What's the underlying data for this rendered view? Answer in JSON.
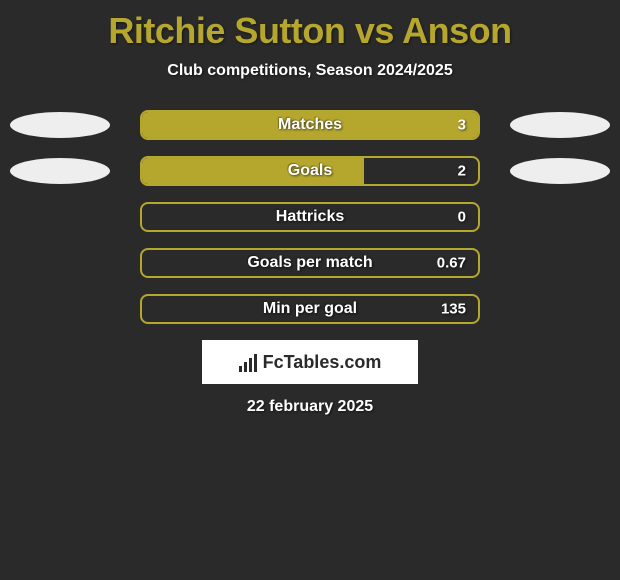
{
  "title": "Ritchie Sutton vs Anson",
  "subtitle": "Club competitions, Season 2024/2025",
  "date": "22 february 2025",
  "logo_text": "FcTables.com",
  "colors": {
    "background": "#2a2a2a",
    "title_color": "#b5a62e",
    "text_color": "#ffffff",
    "bar_border": "#b5a62e",
    "bar_fill": "#b5a62e",
    "ellipse_left": "#eeeeee",
    "ellipse_right": "#eeeeee",
    "logo_bg": "#ffffff",
    "logo_fg": "#2a2a2a"
  },
  "typography": {
    "title_fontsize": 36,
    "subtitle_fontsize": 16,
    "bar_label_fontsize": 16,
    "bar_value_fontsize": 15,
    "date_fontsize": 16
  },
  "chart": {
    "type": "bar",
    "track_width": 340,
    "track_height": 30,
    "border_radius": 8,
    "border_width": 2,
    "rows": [
      {
        "label": "Matches",
        "value": "3",
        "fill_pct": 100,
        "left_ellipse": true,
        "right_ellipse": true
      },
      {
        "label": "Goals",
        "value": "2",
        "fill_pct": 66,
        "left_ellipse": true,
        "right_ellipse": true
      },
      {
        "label": "Hattricks",
        "value": "0",
        "fill_pct": 0,
        "left_ellipse": false,
        "right_ellipse": false
      },
      {
        "label": "Goals per match",
        "value": "0.67",
        "fill_pct": 0,
        "left_ellipse": false,
        "right_ellipse": false
      },
      {
        "label": "Min per goal",
        "value": "135",
        "fill_pct": 0,
        "left_ellipse": false,
        "right_ellipse": false
      }
    ]
  }
}
